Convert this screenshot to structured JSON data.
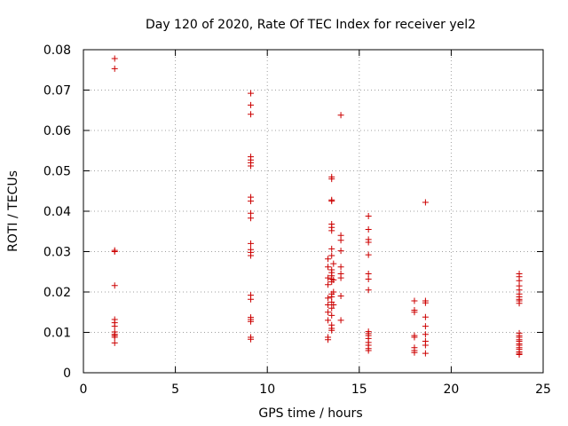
{
  "chart_data": {
    "type": "scatter",
    "title": "Day 120 of 2020, Rate Of TEC Index for receiver yel2",
    "xlabel": "GPS time / hours",
    "ylabel": "ROTI / TECUs",
    "xlim": [
      0,
      25
    ],
    "ylim": [
      0,
      0.08
    ],
    "xticks": [
      "0",
      "5",
      "10",
      "15",
      "20",
      "25"
    ],
    "yticks": [
      "0",
      "0.01",
      "0.02",
      "0.03",
      "0.04",
      "0.05",
      "0.06",
      "0.07",
      "0.08"
    ],
    "grid": true,
    "marker": "+",
    "color": "#cc0000",
    "series": [
      {
        "name": "ROTI",
        "points": [
          [
            1.7,
            0.0778
          ],
          [
            1.7,
            0.0753
          ],
          [
            1.7,
            0.0303
          ],
          [
            1.7,
            0.03
          ],
          [
            1.7,
            0.0216
          ],
          [
            1.7,
            0.0132
          ],
          [
            1.7,
            0.0124
          ],
          [
            1.7,
            0.0115
          ],
          [
            1.7,
            0.0101
          ],
          [
            1.7,
            0.0095
          ],
          [
            1.7,
            0.0092
          ],
          [
            1.7,
            0.0088
          ],
          [
            1.7,
            0.0074
          ],
          [
            9.1,
            0.0692
          ],
          [
            9.1,
            0.0663
          ],
          [
            9.1,
            0.064
          ],
          [
            9.1,
            0.0535
          ],
          [
            9.1,
            0.0527
          ],
          [
            9.1,
            0.052
          ],
          [
            9.1,
            0.0512
          ],
          [
            9.1,
            0.0435
          ],
          [
            9.1,
            0.0425
          ],
          [
            9.1,
            0.0395
          ],
          [
            9.1,
            0.0383
          ],
          [
            9.1,
            0.032
          ],
          [
            9.1,
            0.0305
          ],
          [
            9.1,
            0.0298
          ],
          [
            9.1,
            0.029
          ],
          [
            9.1,
            0.0192
          ],
          [
            9.1,
            0.0182
          ],
          [
            9.1,
            0.0137
          ],
          [
            9.1,
            0.0132
          ],
          [
            9.1,
            0.0127
          ],
          [
            9.1,
            0.0088
          ],
          [
            9.1,
            0.0083
          ],
          [
            13.3,
            0.0282
          ],
          [
            13.3,
            0.0262
          ],
          [
            13.3,
            0.0235
          ],
          [
            13.3,
            0.0218
          ],
          [
            13.3,
            0.0185
          ],
          [
            13.3,
            0.0168
          ],
          [
            13.3,
            0.015
          ],
          [
            13.3,
            0.013
          ],
          [
            13.3,
            0.0088
          ],
          [
            13.3,
            0.0082
          ],
          [
            13.5,
            0.0485
          ],
          [
            13.5,
            0.048
          ],
          [
            13.5,
            0.0428
          ],
          [
            13.5,
            0.0425
          ],
          [
            13.5,
            0.0368
          ],
          [
            13.5,
            0.036
          ],
          [
            13.5,
            0.0352
          ],
          [
            13.5,
            0.0307
          ],
          [
            13.5,
            0.029
          ],
          [
            13.5,
            0.0255
          ],
          [
            13.5,
            0.0248
          ],
          [
            13.5,
            0.024
          ],
          [
            13.5,
            0.0232
          ],
          [
            13.5,
            0.0225
          ],
          [
            13.5,
            0.0195
          ],
          [
            13.5,
            0.0188
          ],
          [
            13.5,
            0.0175
          ],
          [
            13.5,
            0.016
          ],
          [
            13.5,
            0.0142
          ],
          [
            13.5,
            0.0118
          ],
          [
            13.5,
            0.011
          ],
          [
            13.5,
            0.0105
          ],
          [
            13.6,
            0.027
          ],
          [
            13.6,
            0.023
          ],
          [
            13.6,
            0.02
          ],
          [
            13.6,
            0.0168
          ],
          [
            14.0,
            0.0638
          ],
          [
            14.0,
            0.034
          ],
          [
            14.0,
            0.0328
          ],
          [
            14.0,
            0.0302
          ],
          [
            14.0,
            0.0262
          ],
          [
            14.0,
            0.0245
          ],
          [
            14.0,
            0.0235
          ],
          [
            14.0,
            0.019
          ],
          [
            14.0,
            0.013
          ],
          [
            15.5,
            0.0388
          ],
          [
            15.5,
            0.0355
          ],
          [
            15.5,
            0.033
          ],
          [
            15.5,
            0.0323
          ],
          [
            15.5,
            0.0292
          ],
          [
            15.5,
            0.0245
          ],
          [
            15.5,
            0.0232
          ],
          [
            15.5,
            0.0205
          ],
          [
            15.5,
            0.0102
          ],
          [
            15.5,
            0.0097
          ],
          [
            15.5,
            0.0092
          ],
          [
            15.5,
            0.0085
          ],
          [
            15.5,
            0.0075
          ],
          [
            15.5,
            0.0068
          ],
          [
            15.5,
            0.006
          ],
          [
            15.5,
            0.0055
          ],
          [
            18.0,
            0.0178
          ],
          [
            18.0,
            0.0155
          ],
          [
            18.0,
            0.015
          ],
          [
            18.0,
            0.0092
          ],
          [
            18.0,
            0.0088
          ],
          [
            18.0,
            0.0062
          ],
          [
            18.0,
            0.0055
          ],
          [
            18.0,
            0.005
          ],
          [
            18.6,
            0.0422
          ],
          [
            18.6,
            0.0178
          ],
          [
            18.6,
            0.0173
          ],
          [
            18.6,
            0.0138
          ],
          [
            18.6,
            0.0115
          ],
          [
            18.6,
            0.0095
          ],
          [
            18.6,
            0.0078
          ],
          [
            18.6,
            0.0068
          ],
          [
            18.6,
            0.0048
          ],
          [
            23.7,
            0.0245
          ],
          [
            23.7,
            0.0238
          ],
          [
            23.7,
            0.0228
          ],
          [
            23.7,
            0.0215
          ],
          [
            23.7,
            0.0205
          ],
          [
            23.7,
            0.0195
          ],
          [
            23.7,
            0.0188
          ],
          [
            23.7,
            0.0182
          ],
          [
            23.7,
            0.0178
          ],
          [
            23.7,
            0.0172
          ],
          [
            23.7,
            0.0098
          ],
          [
            23.7,
            0.0092
          ],
          [
            23.7,
            0.0088
          ],
          [
            23.7,
            0.0082
          ],
          [
            23.7,
            0.0078
          ],
          [
            23.7,
            0.0072
          ],
          [
            23.7,
            0.0068
          ],
          [
            23.7,
            0.0062
          ],
          [
            23.7,
            0.0058
          ],
          [
            23.7,
            0.0052
          ],
          [
            23.7,
            0.0048
          ],
          [
            23.7,
            0.0045
          ]
        ]
      }
    ]
  }
}
